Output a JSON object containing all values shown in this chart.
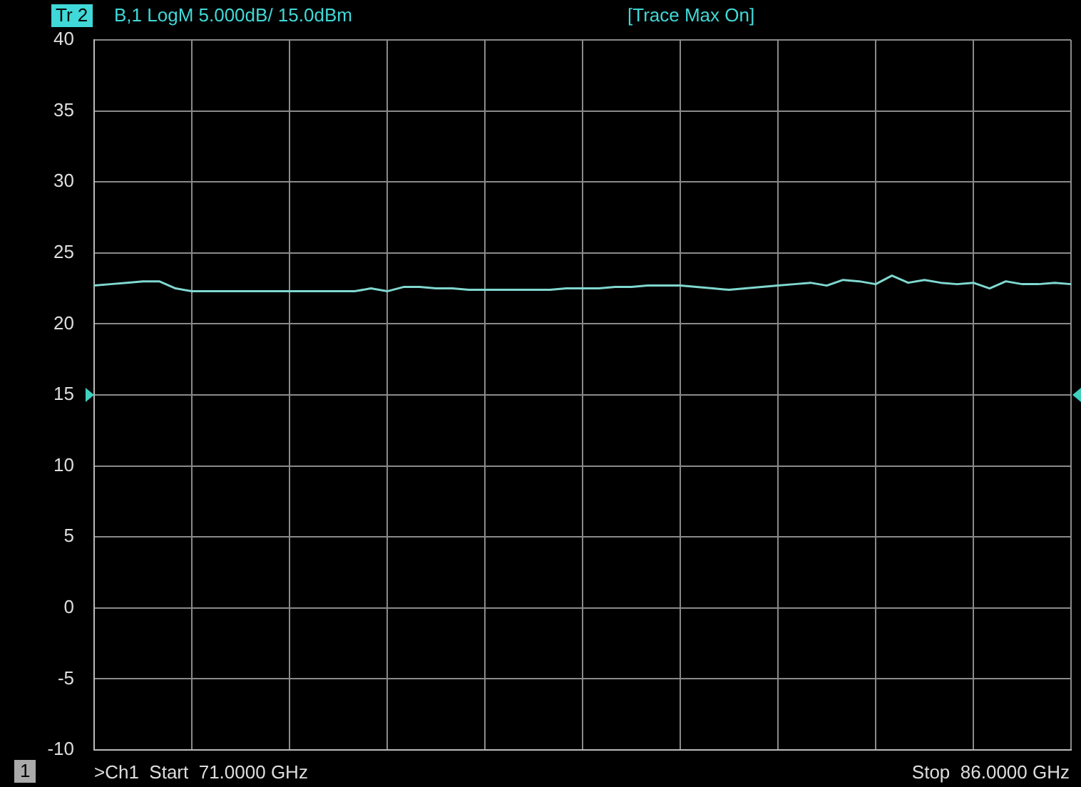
{
  "chart_data": {
    "type": "line",
    "title": "B,1 LogM 5.000dB/ 15.0dBm",
    "annotations": [
      "Tr 2",
      "[Trace Max On]",
      ">Ch1  Start  71.0000 GHz",
      "Stop  86.0000 GHz",
      "1"
    ],
    "categories": [
      null,
      null,
      null,
      null,
      null,
      null,
      null,
      null,
      null,
      null,
      null,
      null,
      null,
      null,
      null,
      null,
      null,
      null,
      null,
      null,
      null,
      null,
      null,
      null,
      null,
      null,
      null,
      null,
      null,
      null,
      null,
      null,
      null,
      null,
      null,
      null,
      null,
      null,
      null,
      null,
      null,
      null,
      null,
      null,
      null,
      null,
      null,
      null,
      null,
      null,
      null,
      null,
      null,
      null,
      null,
      null,
      null,
      null,
      null,
      null,
      null
    ],
    "ylim": [
      -10,
      40
    ],
    "yticks": [
      -10,
      -5,
      0,
      5,
      10,
      15,
      20,
      25,
      30,
      35,
      40
    ],
    "tick_labels": "y",
    "grid": true,
    "marker": "none",
    "line_style": "solid",
    "series": [
      {
        "color": "#80d8d0",
        "values": [
          22.7,
          22.8,
          22.9,
          23.0,
          23.0,
          22.5,
          22.3,
          22.3,
          22.3,
          22.3,
          22.3,
          22.3,
          22.3,
          22.3,
          22.3,
          22.3,
          22.3,
          22.5,
          22.3,
          22.6,
          22.6,
          22.5,
          22.5,
          22.4,
          22.4,
          22.4,
          22.4,
          22.4,
          22.4,
          22.5,
          22.5,
          22.5,
          22.6,
          22.6,
          22.7,
          22.7,
          22.7,
          22.6,
          22.5,
          22.4,
          22.5,
          22.6,
          22.7,
          22.8,
          22.9,
          22.7,
          23.1,
          23.0,
          22.8,
          23.4,
          22.9,
          23.1,
          22.9,
          22.8,
          22.9,
          22.5,
          23.0,
          22.8,
          22.8,
          22.9,
          22.8
        ]
      }
    ]
  }
}
